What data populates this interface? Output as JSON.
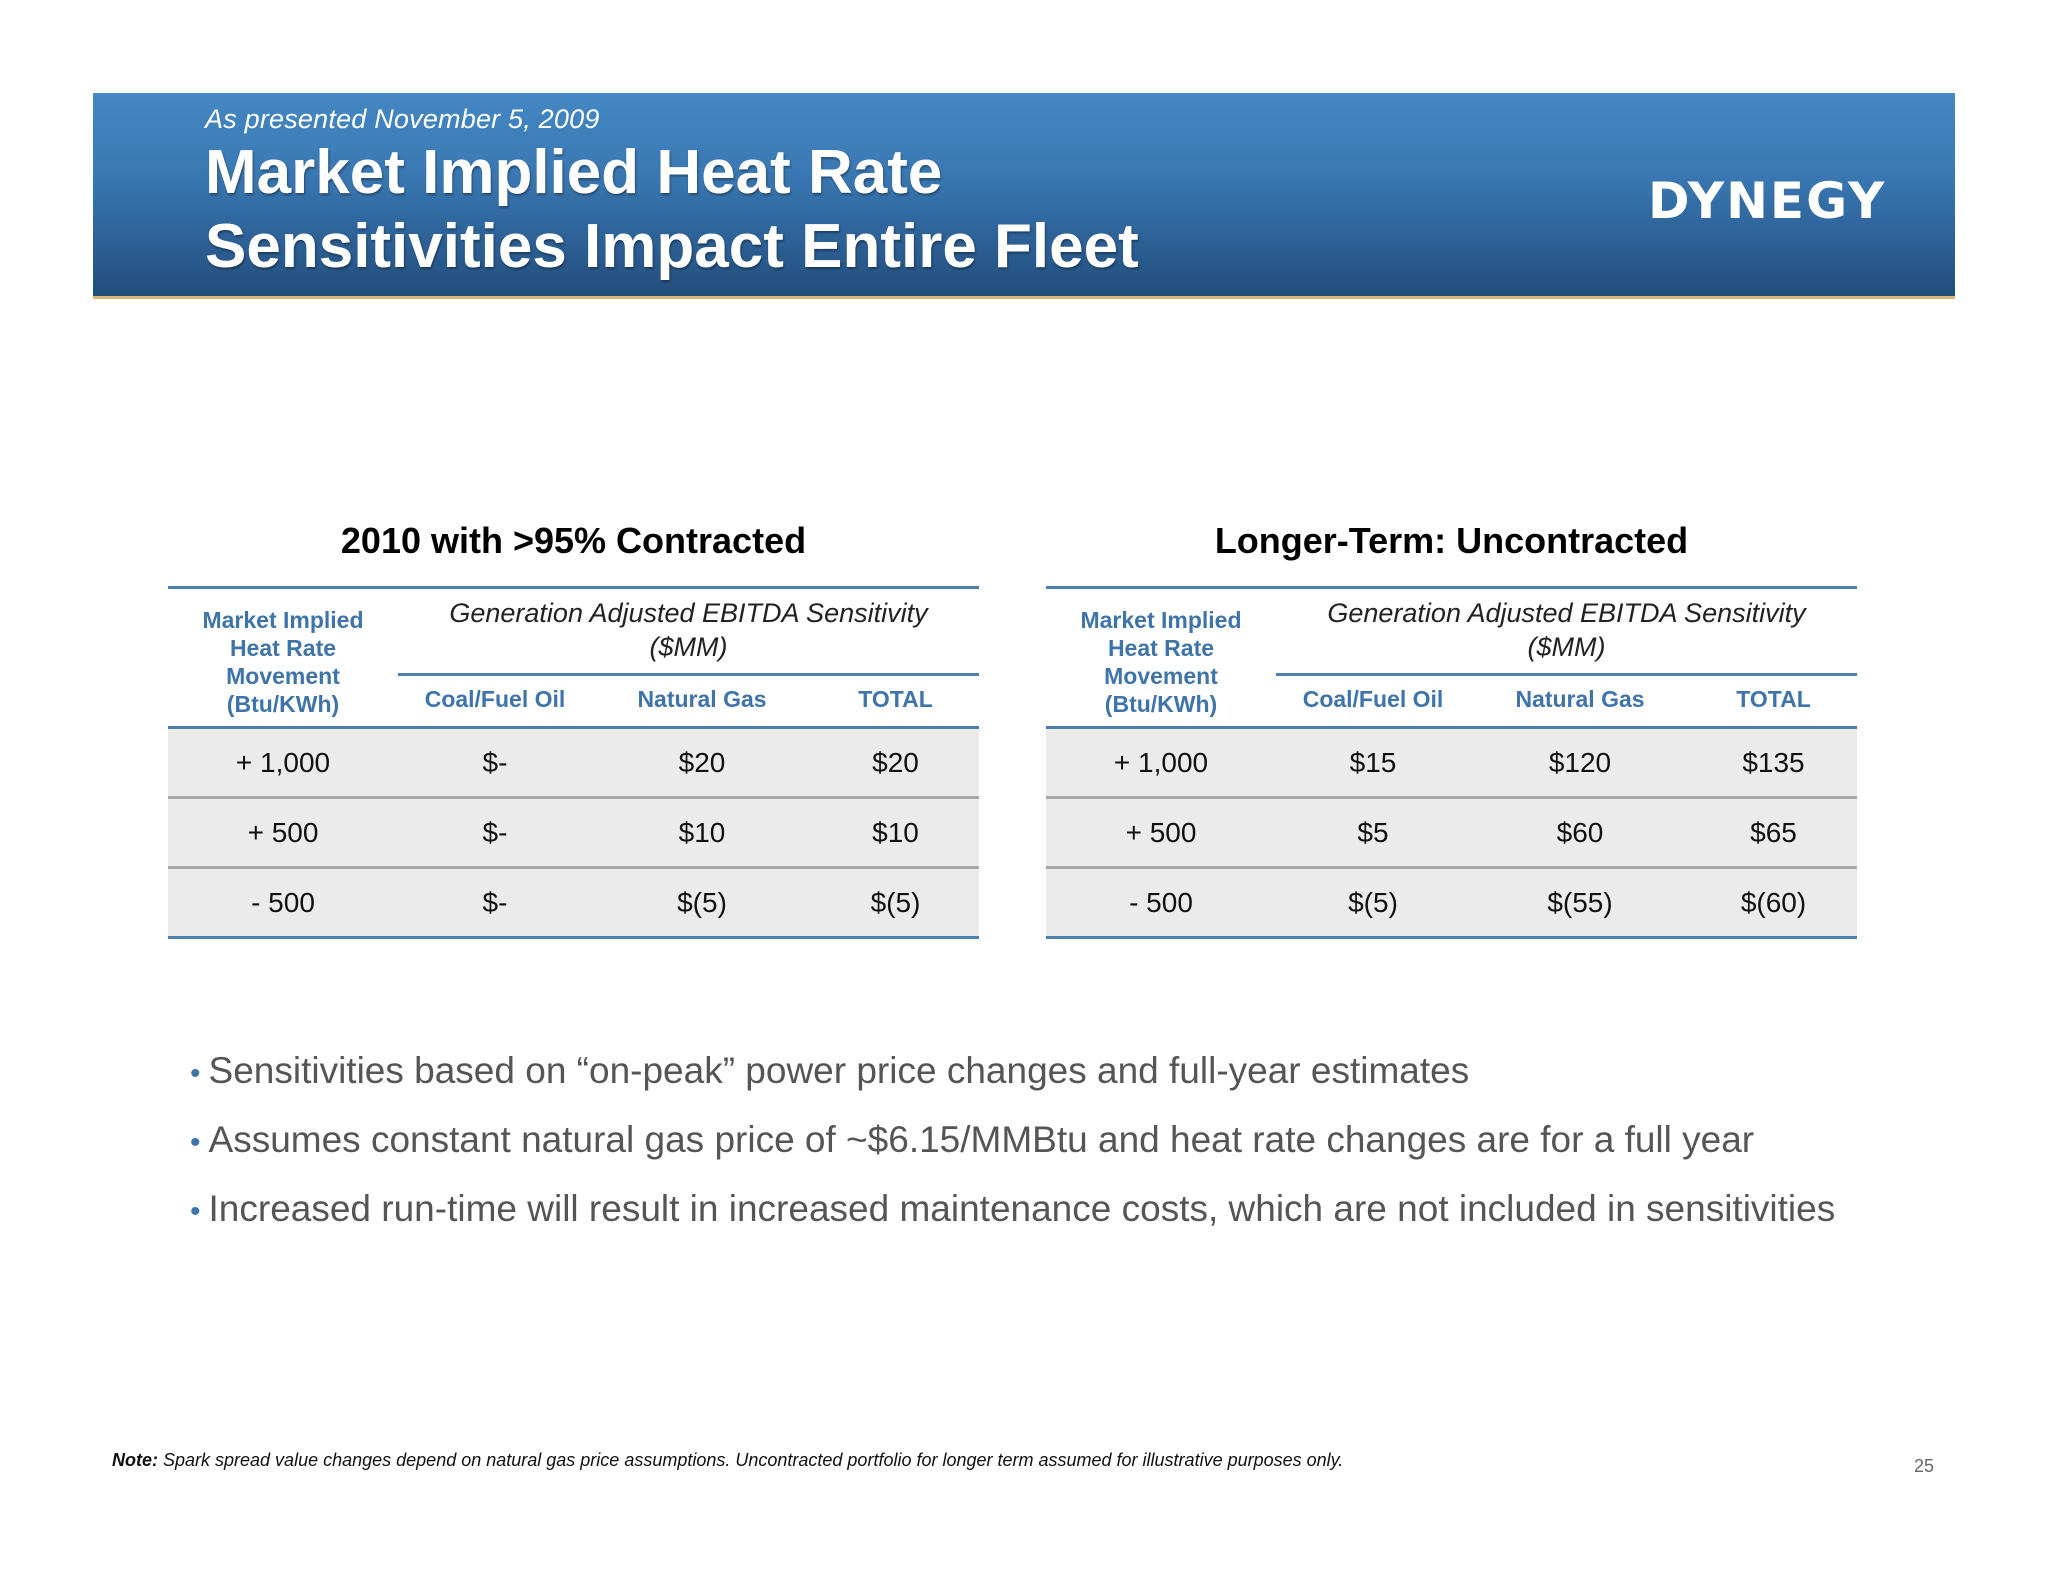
{
  "header": {
    "subtitle": "As presented November 5, 2009",
    "title_line1": "Market Implied Heat Rate",
    "title_line2": "Sensitivities Impact Entire Fleet",
    "logo": "DYNEGY",
    "band_color": "#3a78b3"
  },
  "tables": [
    {
      "title": "2010 with >95% Contracted",
      "row_header": [
        "Market Implied",
        "Heat Rate",
        "Movement",
        "(Btu/KWh)"
      ],
      "group_header": [
        "Generation Adjusted EBITDA Sensitivity",
        "($MM)"
      ],
      "columns": [
        "Coal/Fuel Oil",
        "Natural Gas",
        "TOTAL"
      ],
      "rows": [
        [
          "+ 1,000",
          "$-",
          "$20",
          "$20"
        ],
        [
          "+ 500",
          "$-",
          "$10",
          "$10"
        ],
        [
          "- 500",
          "$-",
          "$(5)",
          "$(5)"
        ]
      ]
    },
    {
      "title": "Longer-Term: Uncontracted",
      "row_header": [
        "Market Implied",
        "Heat Rate",
        "Movement",
        "(Btu/KWh)"
      ],
      "group_header": [
        "Generation Adjusted EBITDA Sensitivity",
        "($MM)"
      ],
      "columns": [
        "Coal/Fuel Oil",
        "Natural Gas",
        "TOTAL"
      ],
      "rows": [
        [
          "+ 1,000",
          "$15",
          "$120",
          "$135"
        ],
        [
          "+ 500",
          "$5",
          "$60",
          "$65"
        ],
        [
          "- 500",
          "$(5)",
          "$(55)",
          "$(60)"
        ]
      ]
    }
  ],
  "bullets": [
    "Sensitivities based on “on-peak” power price changes and full-year estimates",
    "Assumes constant natural gas price of ~$6.15/MMBtu and heat rate changes are for a full year",
    "Increased run-time will result in increased maintenance costs, which are not included in sensitivities"
  ],
  "note": {
    "label": "Note:",
    "text": " Spark spread value changes depend on natural gas price assumptions. Uncontracted portfolio for longer term assumed for illustrative purposes only."
  },
  "page_number": "25",
  "colors": {
    "header_blue": "#3f74aa",
    "row_fill": "#ecebec",
    "accent_rule": "#d8b77a"
  }
}
